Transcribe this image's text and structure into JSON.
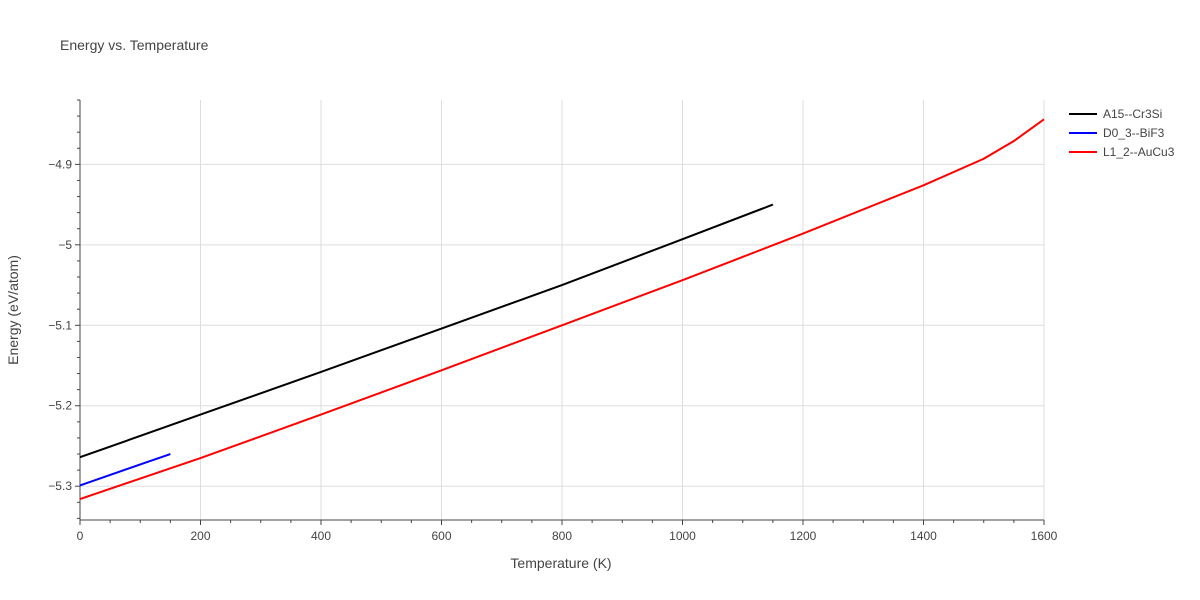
{
  "chart_data": {
    "type": "line",
    "title": "Energy vs. Temperature",
    "xlabel": "Temperature (K)",
    "ylabel": "Energy (eV/atom)",
    "xlim": [
      0,
      1600
    ],
    "ylim": [
      -5.342,
      -4.82
    ],
    "grid": true,
    "legend_position": "top-right",
    "x_ticks": [
      0,
      200,
      400,
      600,
      800,
      1000,
      1200,
      1400,
      1600
    ],
    "x_tick_labels": [
      "0",
      "200",
      "400",
      "600",
      "800",
      "1000",
      "1200",
      "1400",
      "1600"
    ],
    "y_ticks": [
      -5.3,
      -5.2,
      -5.1,
      -5.0,
      -4.9
    ],
    "y_tick_labels": [
      "−5.3",
      "−5.2",
      "−5.1",
      "−5",
      "−4.9"
    ],
    "series": [
      {
        "name": "A15--Cr3Si",
        "color": "#000000",
        "x": [
          0,
          200,
          400,
          600,
          800,
          1000,
          1150
        ],
        "y": [
          -5.264,
          -5.211,
          -5.158,
          -5.104,
          -5.05,
          -4.993,
          -4.95
        ]
      },
      {
        "name": "D0_3--BiF3",
        "color": "#0000ff",
        "x": [
          0,
          50,
          100,
          150
        ],
        "y": [
          -5.299,
          -5.286,
          -5.273,
          -5.26
        ]
      },
      {
        "name": "L1_2--AuCu3",
        "color": "#ff0000",
        "x": [
          0,
          200,
          400,
          600,
          800,
          1000,
          1200,
          1400,
          1500,
          1550,
          1600
        ],
        "y": [
          -5.316,
          -5.265,
          -5.211,
          -5.156,
          -5.1,
          -5.044,
          -4.986,
          -4.926,
          -4.893,
          -4.871,
          -4.844
        ]
      }
    ]
  }
}
